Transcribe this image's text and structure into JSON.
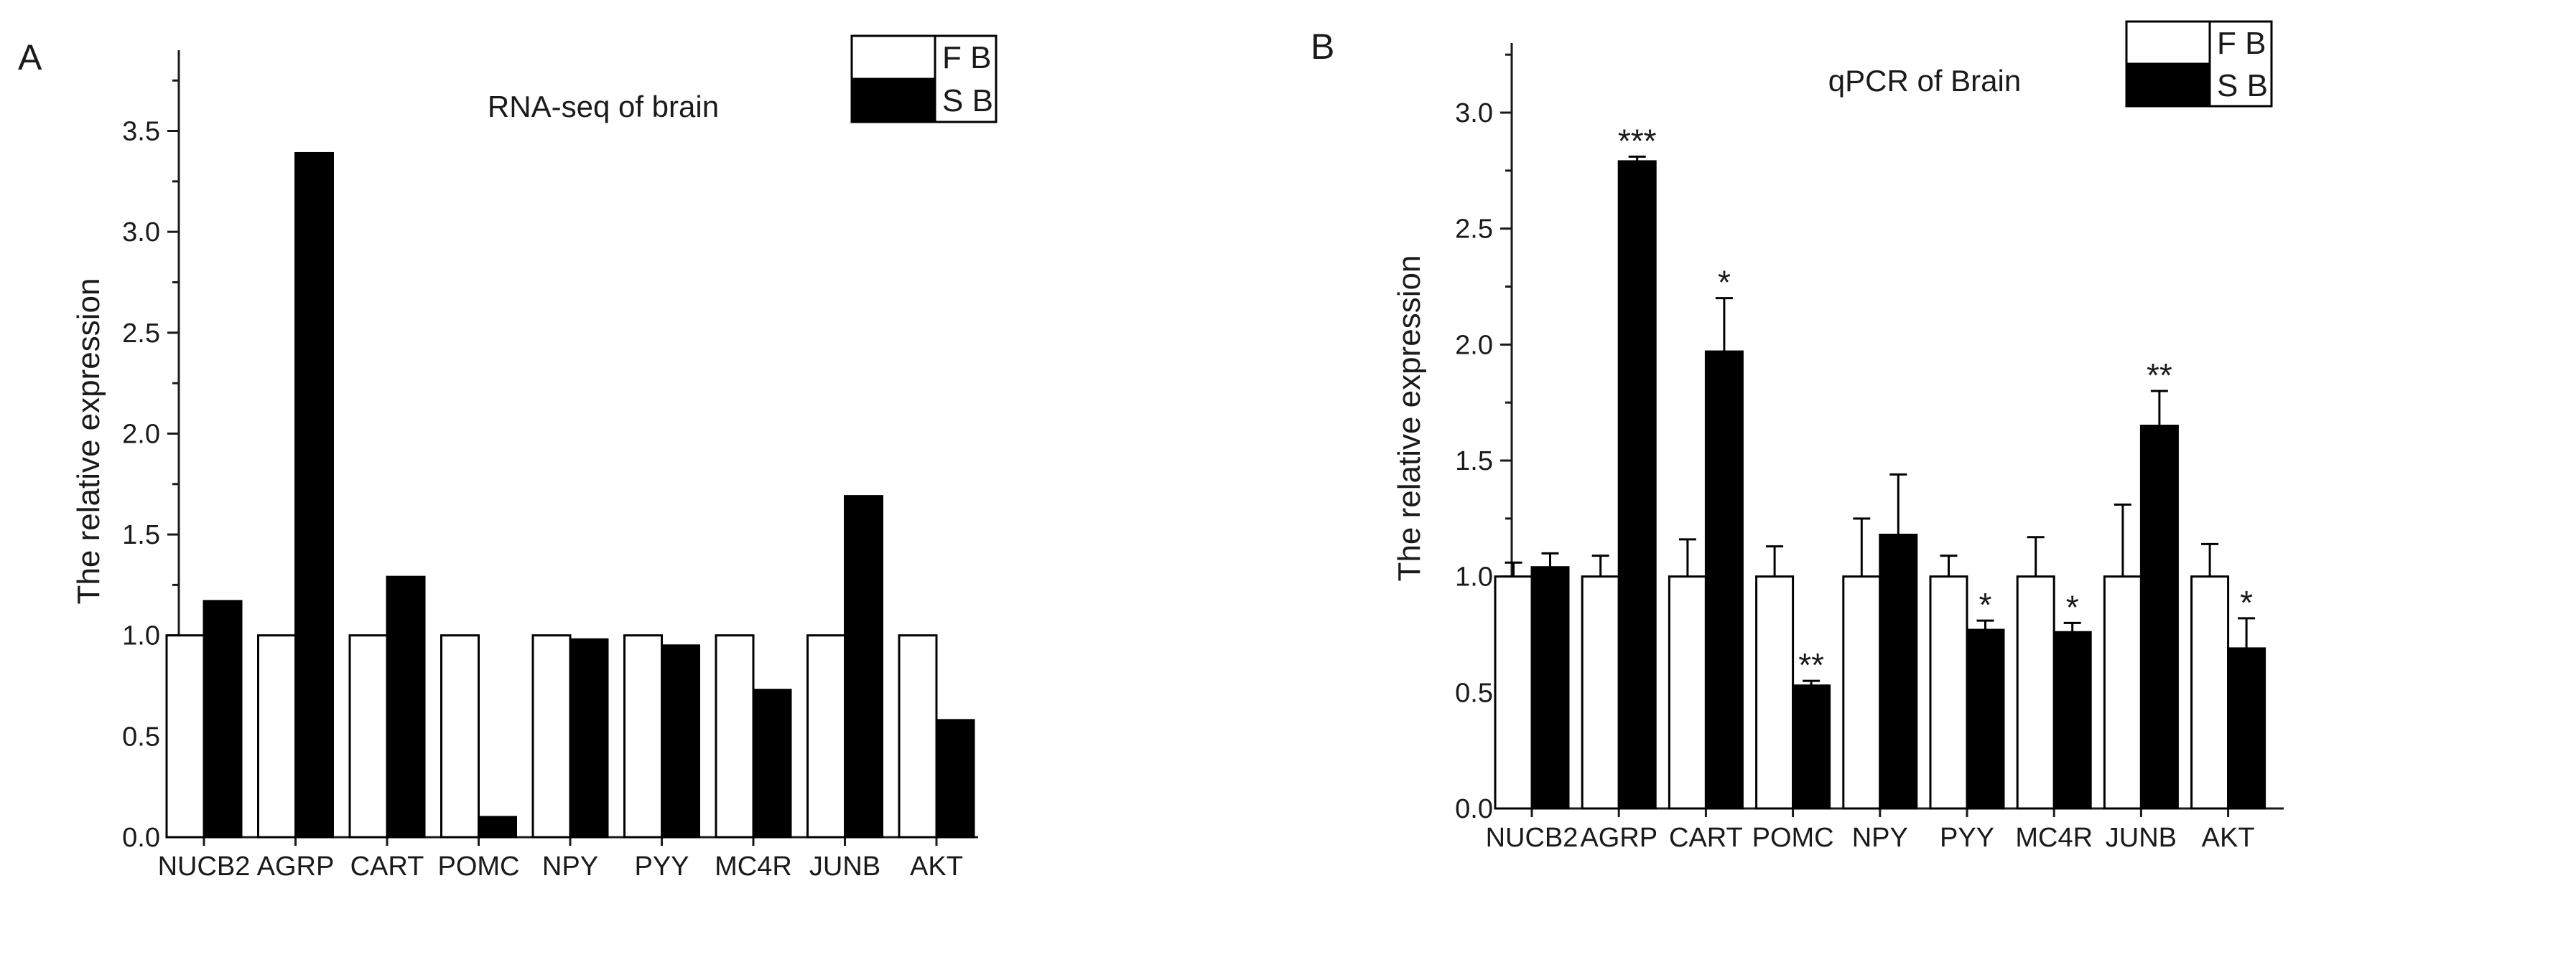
{
  "chart_data": [
    {
      "type": "bar",
      "panel_label": "A",
      "title": "RNA-seq of brain",
      "xlabel": "",
      "ylabel": "The relative expression",
      "ylim": [
        0,
        3.9
      ],
      "yticks": [
        "0.0",
        "0.5",
        "1.0",
        "1.5",
        "2.0",
        "2.5",
        "3.0",
        "3.5"
      ],
      "categories": [
        "NUCB2",
        "AGRP",
        "CART",
        "POMC",
        "NPY",
        "PYY",
        "MC4R",
        "JUNB",
        "AKT"
      ],
      "legend_position": "top-right",
      "series": [
        {
          "name": "F B",
          "color": "#ffffff",
          "values": [
            1.0,
            1.0,
            1.0,
            1.0,
            1.0,
            1.0,
            1.0,
            1.0,
            1.0
          ]
        },
        {
          "name": "S B",
          "color": "#000000",
          "values": [
            1.17,
            3.39,
            1.29,
            0.1,
            0.98,
            0.95,
            0.73,
            1.69,
            0.58
          ]
        }
      ]
    },
    {
      "type": "bar",
      "panel_label": "B",
      "title": "qPCR of Brain",
      "xlabel": "",
      "ylabel": "The relative expression",
      "ylim": [
        0,
        3.3
      ],
      "yticks": [
        "0.0",
        "0.5",
        "1.0",
        "1.5",
        "2.0",
        "2.5",
        "3.0"
      ],
      "categories": [
        "NUCB2",
        "AGRP",
        "CART",
        "POMC",
        "NPY",
        "PYY",
        "MC4R",
        "JUNB",
        "AKT"
      ],
      "legend_position": "top-right",
      "series": [
        {
          "name": "F B",
          "color": "#ffffff",
          "values": [
            1.0,
            1.0,
            1.0,
            1.0,
            1.0,
            1.0,
            1.0,
            1.0,
            1.0
          ],
          "errors": [
            0.06,
            0.09,
            0.16,
            0.13,
            0.25,
            0.09,
            0.17,
            0.31,
            0.14
          ]
        },
        {
          "name": "S B",
          "color": "#000000",
          "values": [
            1.04,
            2.79,
            1.97,
            0.53,
            1.18,
            0.77,
            0.76,
            1.65,
            0.69
          ],
          "errors": [
            0.06,
            0.02,
            0.23,
            0.02,
            0.26,
            0.04,
            0.04,
            0.15,
            0.13
          ],
          "significance": [
            "",
            "***",
            "*",
            "**",
            "",
            "*",
            "*",
            "**",
            "*"
          ]
        }
      ]
    }
  ]
}
